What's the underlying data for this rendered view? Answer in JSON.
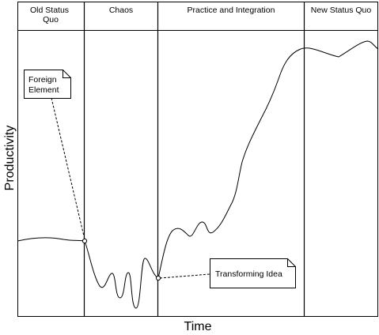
{
  "diagram": {
    "phases": [
      {
        "id": "old-status-quo",
        "lines": [
          "Old Status",
          "Quo"
        ]
      },
      {
        "id": "chaos",
        "lines": [
          "Chaos"
        ]
      },
      {
        "id": "practice-and-integration",
        "lines": [
          "Practice and Integration"
        ]
      },
      {
        "id": "new-status-quo",
        "lines": [
          "New Status Quo"
        ]
      }
    ],
    "x_axis_label": "Time",
    "y_axis_label": "Productivity",
    "callouts": {
      "foreign_element": {
        "lines": [
          "Foreign",
          "Element"
        ]
      },
      "transforming_idea": {
        "lines": [
          "Transforming Idea"
        ]
      }
    }
  }
}
